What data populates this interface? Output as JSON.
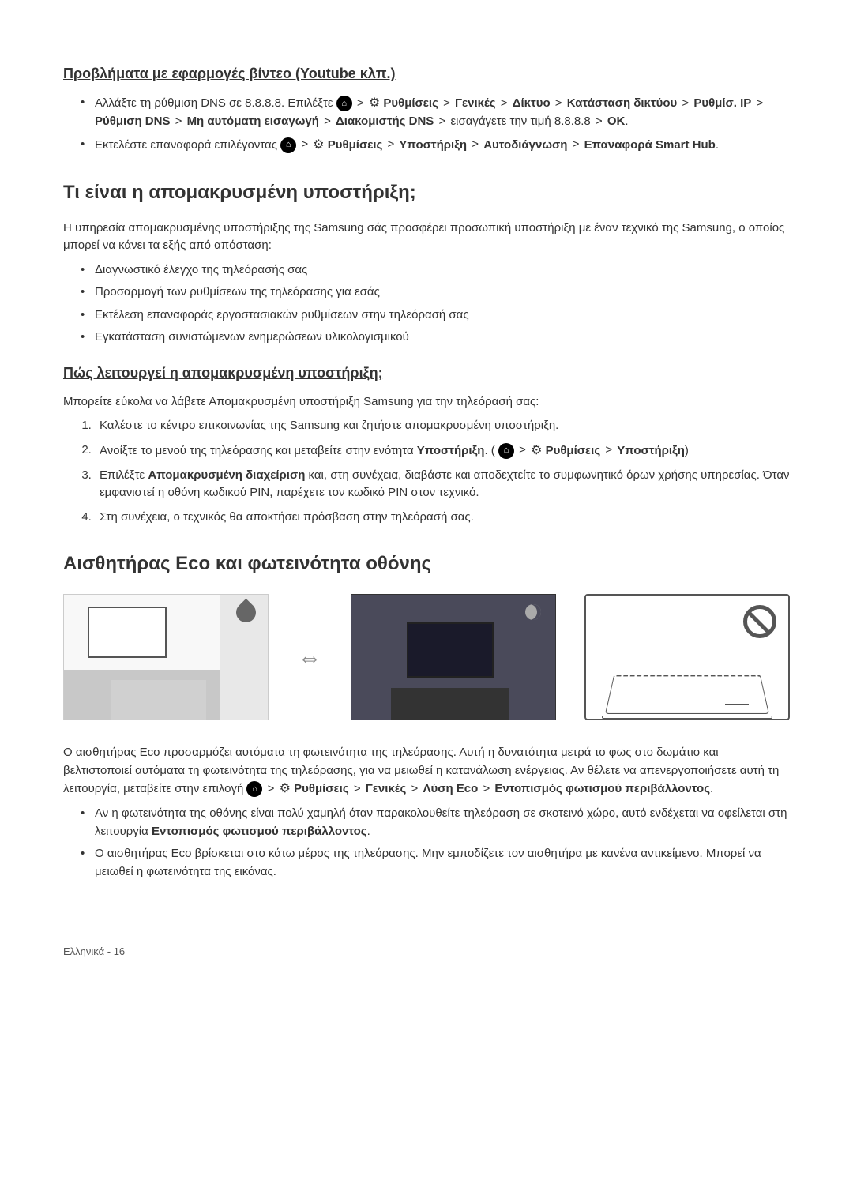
{
  "section1": {
    "heading": "Προβλήματα με εφαρμογές βίντεο (Youtube κλπ.)",
    "bullets": [
      {
        "prefix": "Αλλάξτε τη ρύθμιση DNS σε 8.8.8.8. Επιλέξτε ",
        "path": [
          "Ρυθμίσεις",
          "Γενικές",
          "Δίκτυο",
          "Κατάσταση δικτύου",
          "Ρυθμίσ. IP",
          "Ρύθμιση DNS",
          "Μη αυτόματη εισαγωγή",
          "Διακομιστής DNS"
        ],
        "suffix1": " εισαγάγετε την τιμή 8.8.8.8 ",
        "ok": "OK",
        "suffix2": "."
      },
      {
        "prefix": "Εκτελέστε επαναφορά επιλέγοντας ",
        "path": [
          "Ρυθμίσεις",
          "Υποστήριξη",
          "Αυτοδιάγνωση",
          "Επαναφορά Smart Hub"
        ],
        "suffix": "."
      }
    ]
  },
  "section2": {
    "heading": "Τι είναι η απομακρυσμένη υποστήριξη;",
    "intro": "Η υπηρεσία απομακρυσμένης υποστήριξης της Samsung σάς προσφέρει προσωπική υποστήριξη με έναν τεχνικό της Samsung, ο οποίος μπορεί να κάνει τα εξής από απόσταση:",
    "bullets": [
      "Διαγνωστικό έλεγχο της τηλεόρασής σας",
      "Προσαρμογή των ρυθμίσεων της τηλεόρασης για εσάς",
      "Εκτέλεση επαναφοράς εργοστασιακών ρυθμίσεων στην τηλεόρασή σας",
      "Εγκατάσταση συνιστώμενων ενημερώσεων υλικολογισμικού"
    ]
  },
  "section3": {
    "heading": "Πώς λειτουργεί η απομακρυσμένη υποστήριξη;",
    "intro": "Μπορείτε εύκολα να λάβετε Απομακρυσμένη υποστήριξη Samsung για την τηλεόρασή σας:",
    "steps": [
      {
        "text": "Καλέστε το κέντρο επικοινωνίας της Samsung και ζητήστε απομακρυσμένη υποστήριξη."
      },
      {
        "prefix": "Ανοίξτε το μενού της τηλεόρασης και μεταβείτε στην ενότητα ",
        "bold1": "Υποστήριξη",
        "mid": ". (",
        "path": [
          "Ρυθμίσεις",
          "Υποστήριξη"
        ],
        "suffix": ")"
      },
      {
        "prefix": "Επιλέξτε ",
        "bold1": "Απομακρυσμένη διαχείριση",
        "suffix": " και, στη συνέχεια, διαβάστε και αποδεχτείτε το συμφωνητικό όρων χρήσης υπηρεσίας. Όταν εμφανιστεί η οθόνη κωδικού PIN, παρέχετε τον κωδικό PIN στον τεχνικό."
      },
      {
        "text": "Στη συνέχεια, ο τεχνικός θα αποκτήσει πρόσβαση στην τηλεόρασή σας."
      }
    ]
  },
  "section4": {
    "heading": "Αισθητήρας Eco και φωτεινότητα οθόνης",
    "intro_prefix": "Ο αισθητήρας Eco προσαρμόζει αυτόματα τη φωτεινότητα της τηλεόρασης. Αυτή η δυνατότητα μετρά το φως στο δωμάτιο και βελτιστοποιεί αυτόματα τη φωτεινότητα της τηλεόρασης, για να μειωθεί η κατανάλωση ενέργειας. Αν θέλετε να απενεργοποιήσετε αυτή τη λειτουργία, μεταβείτε στην επιλογή ",
    "path": [
      "Ρυθμίσεις",
      "Γενικές",
      "Λύση Eco",
      "Εντοπισμός φωτισμού περιβάλλοντος"
    ],
    "intro_suffix": ".",
    "bullets": [
      {
        "prefix": "Αν η φωτεινότητα της οθόνης είναι πολύ χαμηλή όταν παρακολουθείτε τηλεόραση σε σκοτεινό χώρο, αυτό ενδέχεται να οφείλεται στη λειτουργία ",
        "bold": "Εντοπισμός φωτισμού περιβάλλοντος",
        "suffix": "."
      },
      {
        "text": "Ο αισθητήρας Eco βρίσκεται στο κάτω μέρος της τηλεόρασης. Μην εμποδίζετε τον αισθητήρα με κανένα αντικείμενο. Μπορεί να μειωθεί η φωτεινότητα της εικόνας."
      }
    ]
  },
  "footer": "Ελληνικά - 16"
}
